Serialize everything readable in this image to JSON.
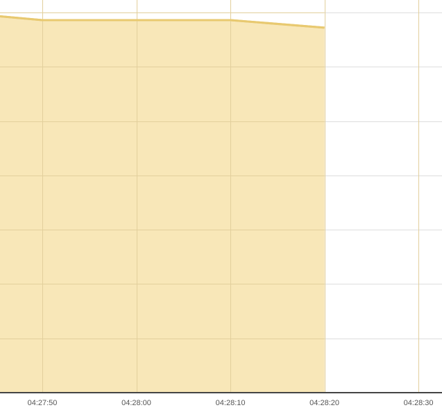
{
  "chart_data": {
    "type": "area",
    "title": "",
    "xlabel": "",
    "ylabel": "",
    "grid": true,
    "colors": {
      "fill": "#f8e6b4",
      "line": "#e8c970",
      "grid": "#dddddd",
      "axis": "#444444",
      "tick_text": "#555555"
    },
    "x_ticks": [
      "04:27:50",
      "04:28:00",
      "04:28:10",
      "04:28:20",
      "04:28:30"
    ],
    "x_range_seconds": [
      "04:27:45.5",
      "04:28:32.5"
    ],
    "series": [
      {
        "x": [
          "04:27:45.5",
          "04:27:50",
          "04:28:00",
          "04:28:10",
          "04:28:20"
        ],
        "y": [
          0.99,
          0.98,
          0.98,
          0.98,
          0.96
        ]
      }
    ],
    "ylim": [
      0,
      1.0
    ],
    "y_gridlines": 7
  }
}
